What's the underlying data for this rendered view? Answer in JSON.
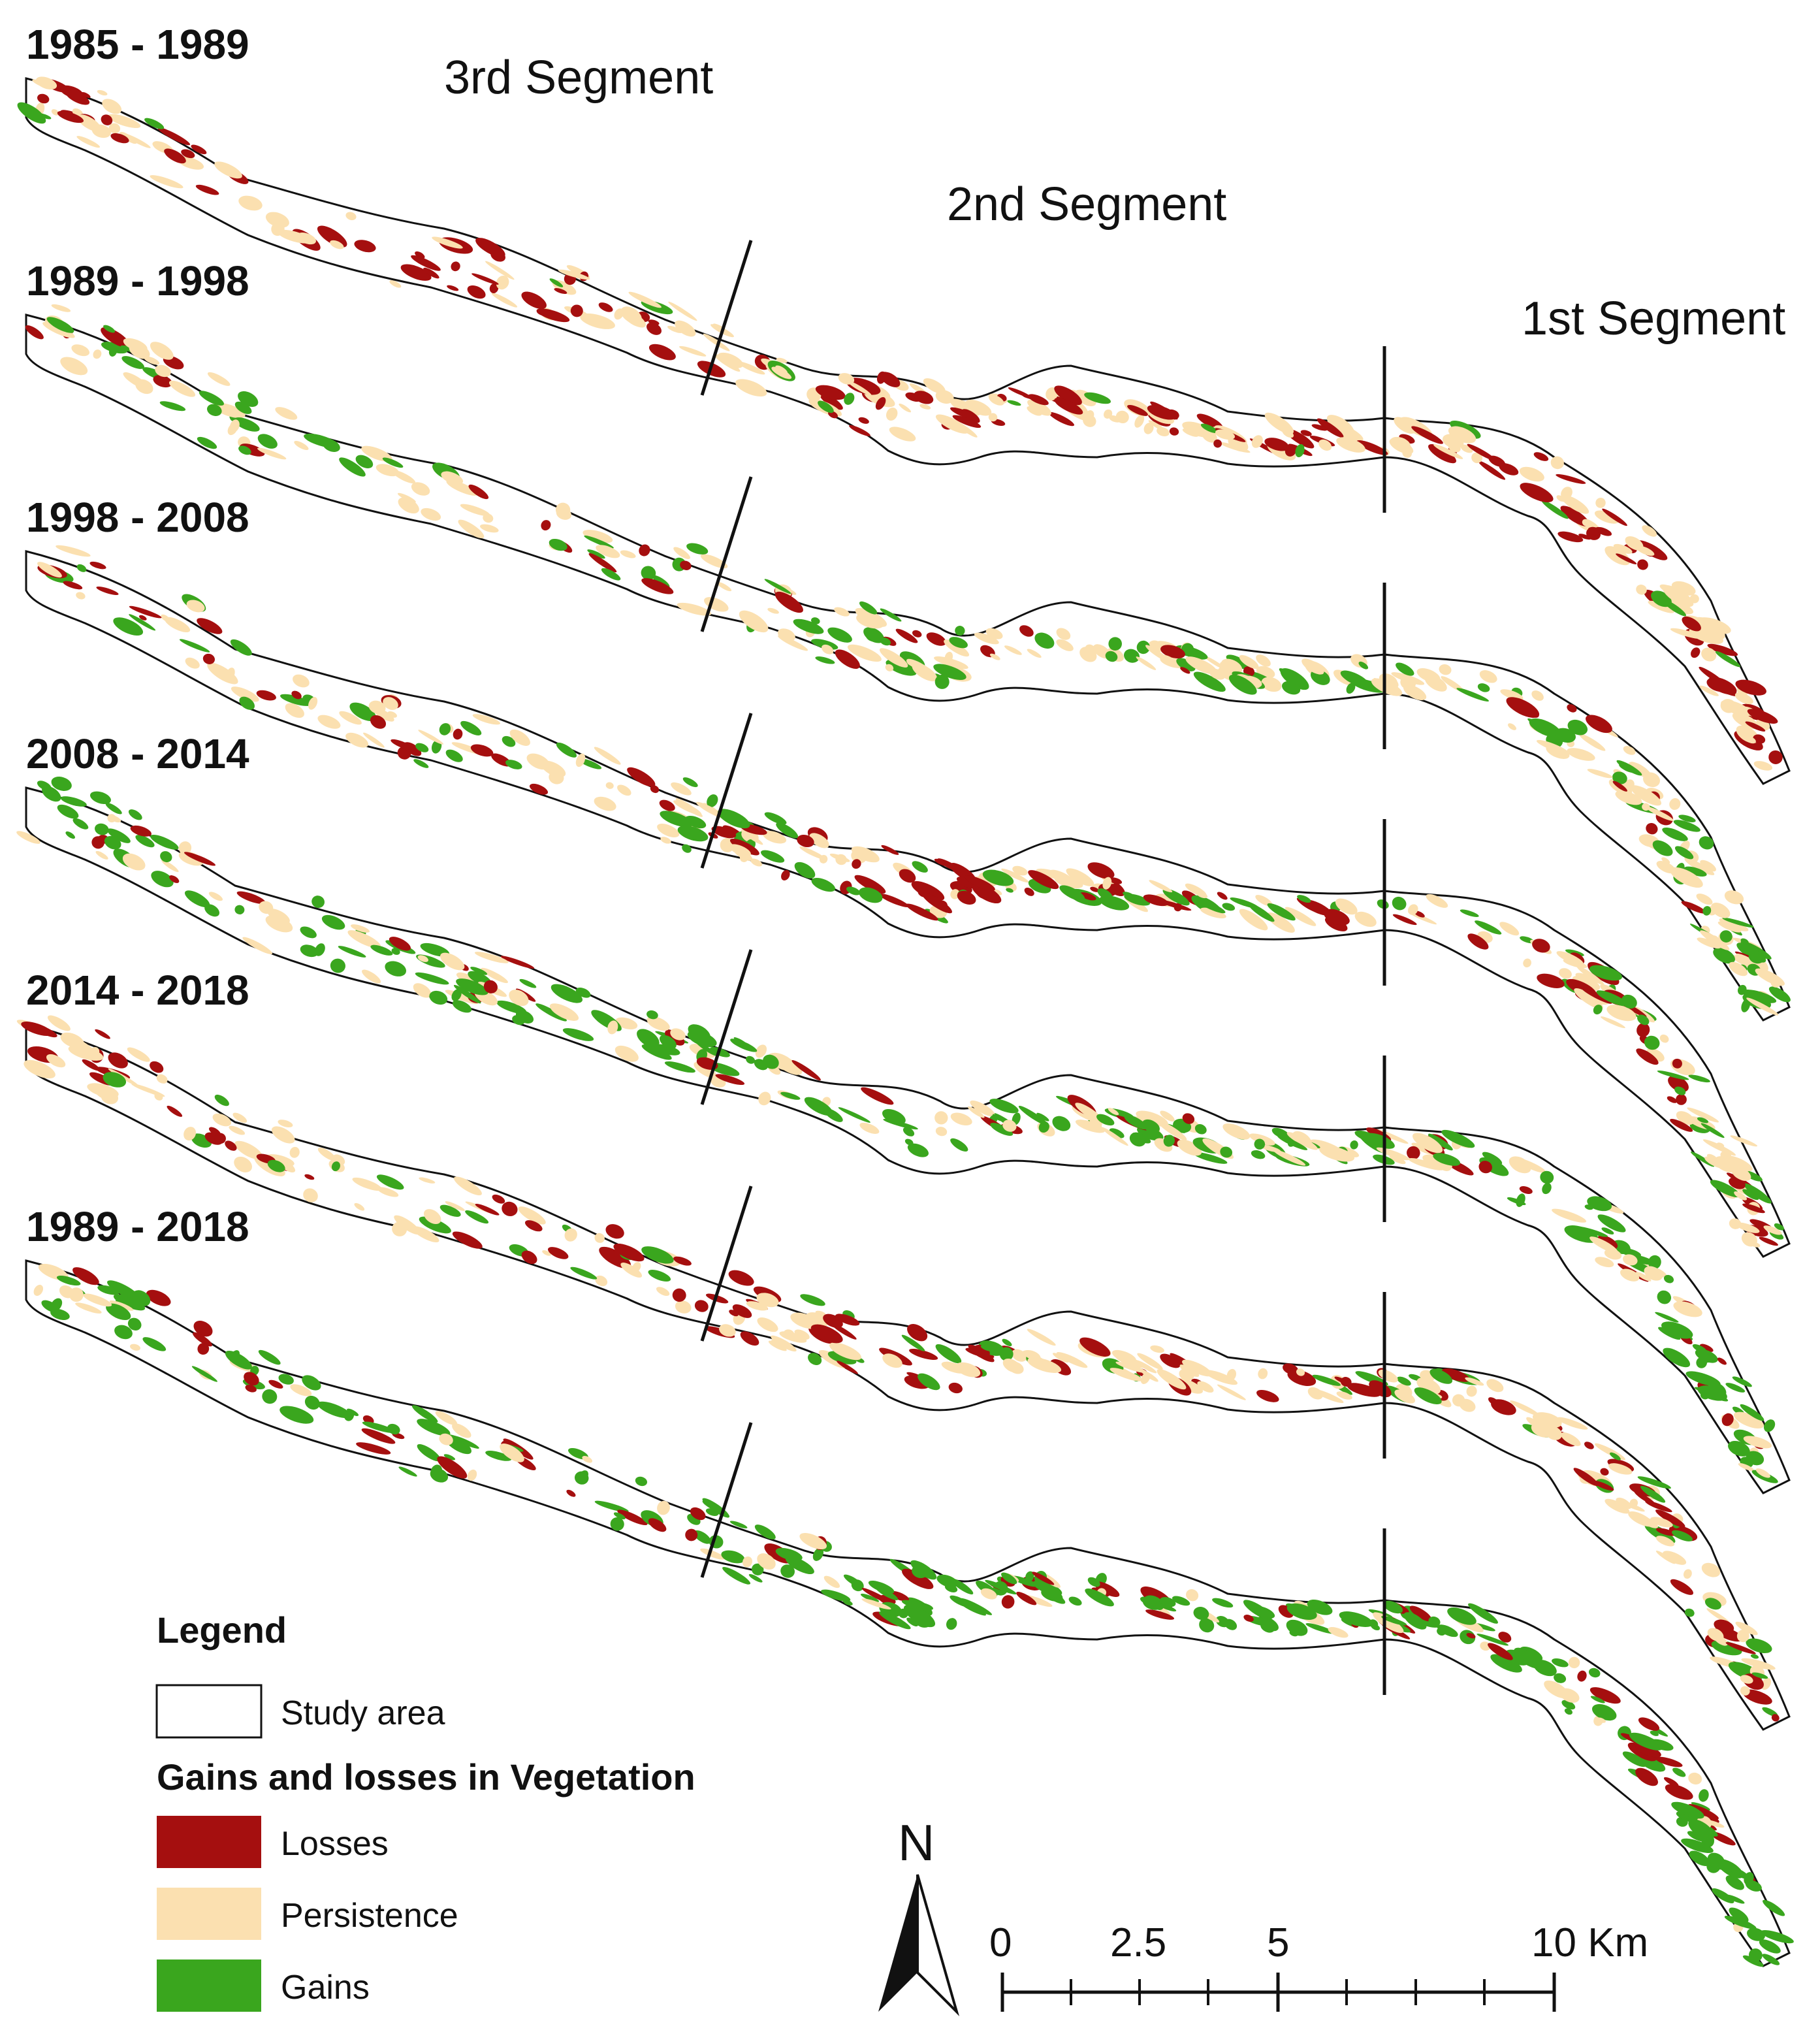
{
  "periods": [
    {
      "label": "1985 - 1989"
    },
    {
      "label": "1989 - 1998"
    },
    {
      "label": "1998 - 2008"
    },
    {
      "label": "2008 - 2014"
    },
    {
      "label": "2014 - 2018"
    },
    {
      "label": "1989 - 2018"
    }
  ],
  "segments": {
    "third": "3rd Segment",
    "second": "2nd Segment",
    "first": "1st Segment"
  },
  "legend": {
    "title": "Legend",
    "study_area": "Study area",
    "group_title": "Gains and losses in Vegetation",
    "items": [
      {
        "label": "Losses",
        "color": "#a50f0f"
      },
      {
        "label": "Persistence",
        "color": "#fbe0b0"
      },
      {
        "label": "Gains",
        "color": "#3aa61e"
      }
    ]
  },
  "north_arrow": {
    "label": "N"
  },
  "scale_bar": {
    "ticks": [
      "0",
      "2.5",
      "5",
      "10 Km"
    ]
  }
}
